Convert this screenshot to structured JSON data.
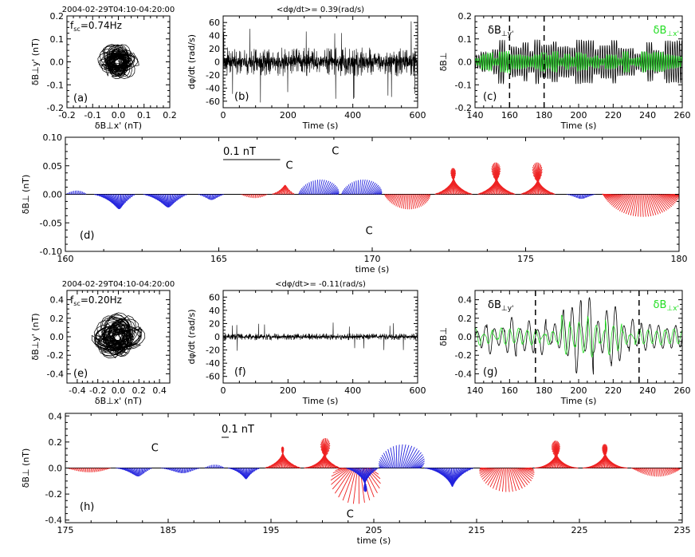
{
  "chart_data": [
    {
      "id": "a",
      "type": "scatter",
      "title": "2004-02-29T04:10-04:20:00",
      "annotation": "f_sc=0.74Hz",
      "panel_label": "(a)",
      "xlabel": "δB⊥x' (nT)",
      "ylabel": "δB⊥y' (nT)",
      "xlim": [
        -0.2,
        0.2
      ],
      "ylim": [
        -0.2,
        0.2
      ],
      "xticks": [
        "-0.2",
        "-0.1",
        "0.0",
        "0.1",
        "0.2"
      ],
      "yticks": [
        "-0.2",
        "-0.1",
        "0.0",
        "0.1",
        "0.2"
      ],
      "hodogram_amplitude": 0.07
    },
    {
      "id": "b",
      "type": "line",
      "title": "<dφ/dt>=  0.39(rad/s)",
      "panel_label": "(b)",
      "xlabel": "Time (s)",
      "ylabel": "dφ/dt (rad/s)",
      "xlim": [
        0,
        600
      ],
      "ylim": [
        -70,
        70
      ],
      "xticks": [
        "0",
        "200",
        "400",
        "600"
      ],
      "yticks": [
        "-60",
        "-40",
        "-20",
        "0",
        "20",
        "40",
        "60"
      ],
      "noise_amplitude": 22,
      "spike_amplitude": 62
    },
    {
      "id": "c",
      "type": "line",
      "panel_label": "(c)",
      "xlabel": "Time (s)",
      "ylabel": "δB⊥",
      "xlim": [
        140,
        260
      ],
      "ylim": [
        -0.2,
        0.2
      ],
      "xticks": [
        "140",
        "160",
        "180",
        "200",
        "220",
        "240",
        "260"
      ],
      "yticks": [
        "-0.2",
        "-0.1",
        "0.0",
        "0.1",
        "0.2"
      ],
      "marker_times": [
        160,
        180
      ],
      "series": [
        {
          "name": "δB⊥y'",
          "color": "#000000",
          "frequency_hz": 0.74,
          "amplitude": 0.07
        },
        {
          "name": "δB⊥x'",
          "color": "#22dd22",
          "frequency_hz": 0.74,
          "amplitude": 0.035
        }
      ]
    },
    {
      "id": "d",
      "type": "vector",
      "panel_label": "(d)",
      "scale_label": "0.1  nT",
      "scale_value": 0.1,
      "xlabel": "time (s)",
      "ylabel": "δB⊥ (nT)",
      "xlim": [
        160,
        180
      ],
      "ylim": [
        -0.1,
        0.1
      ],
      "xticks": [
        "160",
        "165",
        "170",
        "175",
        "180"
      ],
      "yticks": [
        "-0.10",
        "-0.05",
        "0.00",
        "0.05",
        "0.10"
      ],
      "colors": {
        "positive": "#ee2222",
        "negative": "#2222dd"
      },
      "c_annotations": [
        {
          "text": "C",
          "x": 167.3,
          "y": 0.045
        },
        {
          "text": "C",
          "x": 168.8,
          "y": 0.07
        },
        {
          "text": "C",
          "x": 169.9,
          "y": -0.07
        }
      ],
      "segments": [
        {
          "t0": 160,
          "t1": 160.7,
          "amp": 0.01,
          "sense": -1,
          "center": 90,
          "spread": 80
        },
        {
          "t0": 160.9,
          "t1": 162.3,
          "amp": 0.04,
          "sense": -1,
          "center": -75,
          "spread": 110
        },
        {
          "t0": 162.5,
          "t1": 164.0,
          "amp": 0.035,
          "sense": -1,
          "center": -80,
          "spread": 120
        },
        {
          "t0": 164.3,
          "t1": 165.2,
          "amp": 0.015,
          "sense": -1,
          "center": -90,
          "spread": 110
        },
        {
          "t0": 165.7,
          "t1": 166.6,
          "amp": 0.01,
          "sense": 1,
          "center": -90,
          "spread": 110
        },
        {
          "t0": 166.7,
          "t1": 167.5,
          "amp": 0.025,
          "sense": 1,
          "center": 80,
          "spread": 110
        },
        {
          "t0": 167.6,
          "t1": 168.9,
          "amp": 0.04,
          "sense": -1,
          "center": 80,
          "spread": 120
        },
        {
          "t0": 169.0,
          "t1": 170.3,
          "amp": 0.04,
          "sense": -1,
          "center": 80,
          "spread": 120
        },
        {
          "t0": 170.4,
          "t1": 171.9,
          "amp": 0.04,
          "sense": 1,
          "center": -90,
          "spread": 110
        },
        {
          "t0": 172.0,
          "t1": 173.3,
          "amp": 0.07,
          "sense": 1,
          "center": 90,
          "spread": 140
        },
        {
          "t0": 173.4,
          "t1": 174.7,
          "amp": 0.085,
          "sense": 1,
          "center": 90,
          "spread": 140
        },
        {
          "t0": 174.8,
          "t1": 176.0,
          "amp": 0.085,
          "sense": 1,
          "center": 90,
          "spread": 140
        },
        {
          "t0": 176.3,
          "t1": 177.3,
          "amp": 0.012,
          "sense": -1,
          "center": -90,
          "spread": 120
        },
        {
          "t0": 177.5,
          "t1": 180,
          "amp": 0.06,
          "sense": 1,
          "center": -90,
          "spread": 200
        }
      ]
    },
    {
      "id": "e",
      "type": "scatter",
      "title": "2004-02-29T04:10-04:20:00",
      "annotation": "f_sc=0.20Hz",
      "panel_label": "(e)",
      "xlabel": "δB⊥x' (nT)",
      "ylabel": "δB⊥y' (nT)",
      "xlim": [
        -0.5,
        0.5
      ],
      "ylim": [
        -0.5,
        0.5
      ],
      "xticks": [
        "-0.4",
        "-0.2",
        "0.0",
        "0.2",
        "0.4"
      ],
      "yticks": [
        "-0.4",
        "-0.2",
        "0.0",
        "0.2",
        "0.4"
      ],
      "hodogram_amplitude": 0.22
    },
    {
      "id": "f",
      "type": "line",
      "title": "<dφ/dt>= -0.11(rad/s)",
      "panel_label": "(f)",
      "xlabel": "Time (s)",
      "ylabel": "dφ/dt (rad/s)",
      "xlim": [
        0,
        600
      ],
      "ylim": [
        -70,
        70
      ],
      "xticks": [
        "0",
        "200",
        "400",
        "600"
      ],
      "yticks": [
        "-60",
        "-40",
        "-20",
        "0",
        "20",
        "40",
        "60"
      ],
      "noise_amplitude": 5,
      "spike_amplitude": 22
    },
    {
      "id": "g",
      "type": "line",
      "panel_label": "(g)",
      "xlabel": "Time (s)",
      "ylabel": "δB⊥",
      "xlim": [
        140,
        260
      ],
      "ylim": [
        -0.5,
        0.5
      ],
      "xticks": [
        "140",
        "160",
        "180",
        "200",
        "220",
        "240",
        "260"
      ],
      "yticks": [
        "-0.4",
        "-0.2",
        "0.0",
        "0.2",
        "0.4"
      ],
      "marker_times": [
        175,
        235
      ],
      "series": [
        {
          "name": "δB⊥y'",
          "color": "#000000",
          "frequency_hz": 0.2,
          "amplitude": 0.15
        },
        {
          "name": "δB⊥x'",
          "color": "#22dd22",
          "frequency_hz": 0.2,
          "amplitude": 0.07
        }
      ]
    },
    {
      "id": "h",
      "type": "vector",
      "panel_label": "(h)",
      "scale_label": "0.1  nT",
      "scale_value": 0.1,
      "xlabel": "time (s)",
      "ylabel": "δB⊥ (nT)",
      "xlim": [
        175,
        235
      ],
      "ylim": [
        -0.42,
        0.42
      ],
      "xticks": [
        "175",
        "185",
        "195",
        "205",
        "215",
        "225",
        "235"
      ],
      "yticks": [
        "-0.4",
        "-0.2",
        "0.0",
        "0.2",
        "0.4"
      ],
      "colors": {
        "positive": "#ee2222",
        "negative": "#2222dd"
      },
      "c_annotations": [
        {
          "text": "C",
          "x": 183.7,
          "y": 0.13
        },
        {
          "text": "C",
          "x": 202.7,
          "y": -0.38
        }
      ],
      "segments": [
        {
          "t0": 175,
          "t1": 179.5,
          "amp": 0.05,
          "sense": 1,
          "center": -90,
          "spread": 110
        },
        {
          "t0": 179.8,
          "t1": 183.5,
          "amp": 0.1,
          "sense": -1,
          "center": -70,
          "spread": 120
        },
        {
          "t0": 184.2,
          "t1": 188.2,
          "amp": 0.06,
          "sense": -1,
          "center": -80,
          "spread": 110
        },
        {
          "t0": 188.5,
          "t1": 190.5,
          "amp": 0.04,
          "sense": -1,
          "center": 80,
          "spread": 100
        },
        {
          "t0": 190.7,
          "t1": 194.0,
          "amp": 0.13,
          "sense": -1,
          "center": -80,
          "spread": 130
        },
        {
          "t0": 194.3,
          "t1": 198.0,
          "amp": 0.25,
          "sense": 1,
          "center": 90,
          "spread": 140
        },
        {
          "t0": 198.1,
          "t1": 201.8,
          "amp": 0.35,
          "sense": 1,
          "center": 80,
          "spread": 150
        },
        {
          "t0": 201.9,
          "t1": 204.8,
          "amp": 0.42,
          "sense": 1,
          "center": -100,
          "spread": 160
        },
        {
          "t0": 202.2,
          "t1": 205.5,
          "amp": 0.28,
          "sense": -1,
          "center": -80,
          "spread": 120
        },
        {
          "t0": 205.6,
          "t1": 209.5,
          "amp": 0.28,
          "sense": -1,
          "center": 80,
          "spread": 140
        },
        {
          "t0": 209.8,
          "t1": 214.8,
          "amp": 0.22,
          "sense": -1,
          "center": -80,
          "spread": 140
        },
        {
          "t0": 215.5,
          "t1": 220.2,
          "amp": 0.28,
          "sense": 1,
          "center": -90,
          "spread": 200
        },
        {
          "t0": 220.5,
          "t1": 225.0,
          "amp": 0.32,
          "sense": 1,
          "center": 90,
          "spread": 180
        },
        {
          "t0": 225.2,
          "t1": 229.8,
          "amp": 0.28,
          "sense": 1,
          "center": 90,
          "spread": 180
        },
        {
          "t0": 230.0,
          "t1": 235,
          "amp": 0.1,
          "sense": 1,
          "center": -90,
          "spread": 150
        }
      ]
    }
  ]
}
